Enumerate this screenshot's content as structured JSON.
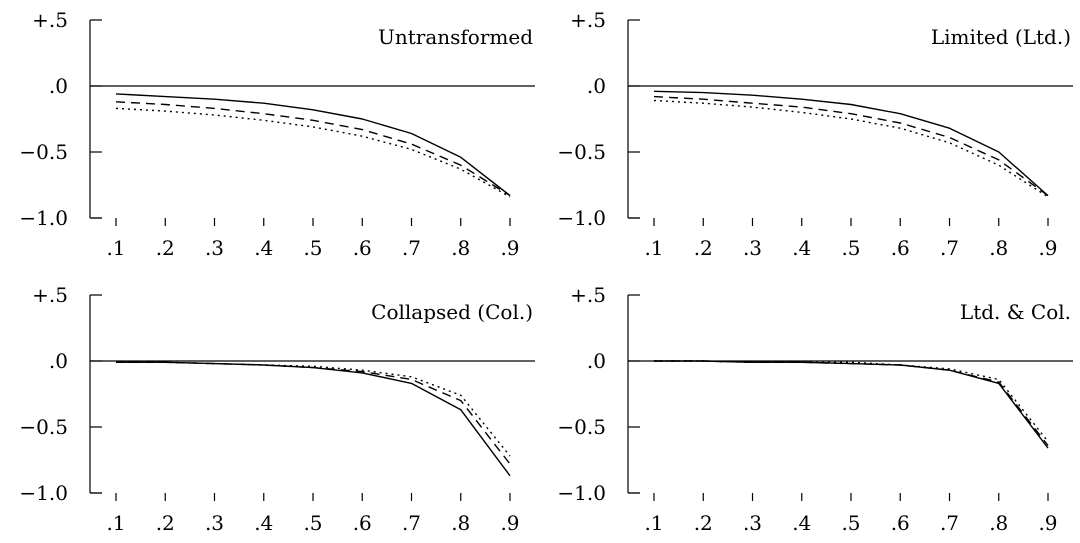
{
  "chart_data": [
    {
      "type": "line",
      "title": "Untransformed",
      "x": [
        0.1,
        0.2,
        0.3,
        0.4,
        0.5,
        0.6,
        0.7,
        0.8,
        0.9
      ],
      "x_tick_labels": [
        ".1",
        ".2",
        ".3",
        ".4",
        ".5",
        ".6",
        ".7",
        ".8",
        ".9"
      ],
      "y_ticks": [
        0.5,
        0.0,
        -0.5,
        -1.0
      ],
      "y_tick_labels": [
        "+.5",
        ".0",
        "−0.5",
        "−1.0"
      ],
      "ylim": [
        -1.0,
        0.5
      ],
      "reference_line_y": 0.0,
      "series": [
        {
          "style": "solid",
          "values": [
            -0.06,
            -0.08,
            -0.1,
            -0.13,
            -0.18,
            -0.25,
            -0.36,
            -0.54,
            -0.83
          ]
        },
        {
          "style": "dashed",
          "values": [
            -0.12,
            -0.14,
            -0.17,
            -0.21,
            -0.26,
            -0.33,
            -0.44,
            -0.6,
            -0.83
          ]
        },
        {
          "style": "dotted",
          "values": [
            -0.17,
            -0.19,
            -0.22,
            -0.26,
            -0.31,
            -0.38,
            -0.48,
            -0.63,
            -0.84
          ]
        }
      ]
    },
    {
      "type": "line",
      "title": "Limited (Ltd.)",
      "x": [
        0.1,
        0.2,
        0.3,
        0.4,
        0.5,
        0.6,
        0.7,
        0.8,
        0.9
      ],
      "x_tick_labels": [
        ".1",
        ".2",
        ".3",
        ".4",
        ".5",
        ".6",
        ".7",
        ".8",
        ".9"
      ],
      "y_ticks": [
        0.5,
        0.0,
        -0.5,
        -1.0
      ],
      "y_tick_labels": [
        "+.5",
        ".0",
        "−0.5",
        "−1.0"
      ],
      "ylim": [
        -1.0,
        0.5
      ],
      "reference_line_y": 0.0,
      "series": [
        {
          "style": "solid",
          "values": [
            -0.04,
            -0.05,
            -0.07,
            -0.1,
            -0.14,
            -0.21,
            -0.32,
            -0.5,
            -0.83
          ]
        },
        {
          "style": "dashed",
          "values": [
            -0.08,
            -0.1,
            -0.13,
            -0.16,
            -0.21,
            -0.28,
            -0.39,
            -0.56,
            -0.83
          ]
        },
        {
          "style": "dotted",
          "values": [
            -0.11,
            -0.13,
            -0.16,
            -0.2,
            -0.25,
            -0.32,
            -0.43,
            -0.6,
            -0.84
          ]
        }
      ]
    },
    {
      "type": "line",
      "title": "Collapsed (Col.)",
      "x": [
        0.1,
        0.2,
        0.3,
        0.4,
        0.5,
        0.6,
        0.7,
        0.8,
        0.9
      ],
      "x_tick_labels": [
        ".1",
        ".2",
        ".3",
        ".4",
        ".5",
        ".6",
        ".7",
        ".8",
        ".9"
      ],
      "y_ticks": [
        0.5,
        0.0,
        -0.5,
        -1.0
      ],
      "y_tick_labels": [
        "+.5",
        ".0",
        "−0.5",
        "−1.0"
      ],
      "ylim": [
        -1.0,
        0.5
      ],
      "reference_line_y": 0.0,
      "series": [
        {
          "style": "solid",
          "values": [
            -0.01,
            -0.01,
            -0.02,
            -0.03,
            -0.05,
            -0.09,
            -0.17,
            -0.37,
            -0.87
          ]
        },
        {
          "style": "dashed",
          "values": [
            -0.01,
            -0.01,
            -0.02,
            -0.03,
            -0.05,
            -0.08,
            -0.14,
            -0.3,
            -0.78
          ]
        },
        {
          "style": "dotted",
          "values": [
            -0.01,
            -0.01,
            -0.02,
            -0.03,
            -0.04,
            -0.07,
            -0.12,
            -0.26,
            -0.72
          ]
        }
      ]
    },
    {
      "type": "line",
      "title": "Ltd. & Col.",
      "x": [
        0.1,
        0.2,
        0.3,
        0.4,
        0.5,
        0.6,
        0.7,
        0.8,
        0.9
      ],
      "x_tick_labels": [
        ".1",
        ".2",
        ".3",
        ".4",
        ".5",
        ".6",
        ".7",
        ".8",
        ".9"
      ],
      "y_ticks": [
        0.5,
        0.0,
        -0.5,
        -1.0
      ],
      "y_tick_labels": [
        "+.5",
        ".0",
        "−0.5",
        "−1.0"
      ],
      "ylim": [
        -1.0,
        0.5
      ],
      "reference_line_y": 0.0,
      "series": [
        {
          "style": "solid",
          "values": [
            0.0,
            0.0,
            -0.01,
            -0.01,
            -0.02,
            -0.03,
            -0.07,
            -0.17,
            -0.66
          ]
        },
        {
          "style": "dashed",
          "values": [
            0.0,
            0.0,
            -0.01,
            -0.01,
            -0.02,
            -0.03,
            -0.07,
            -0.16,
            -0.64
          ]
        },
        {
          "style": "dotted",
          "values": [
            0.0,
            0.0,
            -0.01,
            -0.01,
            -0.01,
            -0.03,
            -0.06,
            -0.14,
            -0.61
          ]
        }
      ]
    }
  ]
}
